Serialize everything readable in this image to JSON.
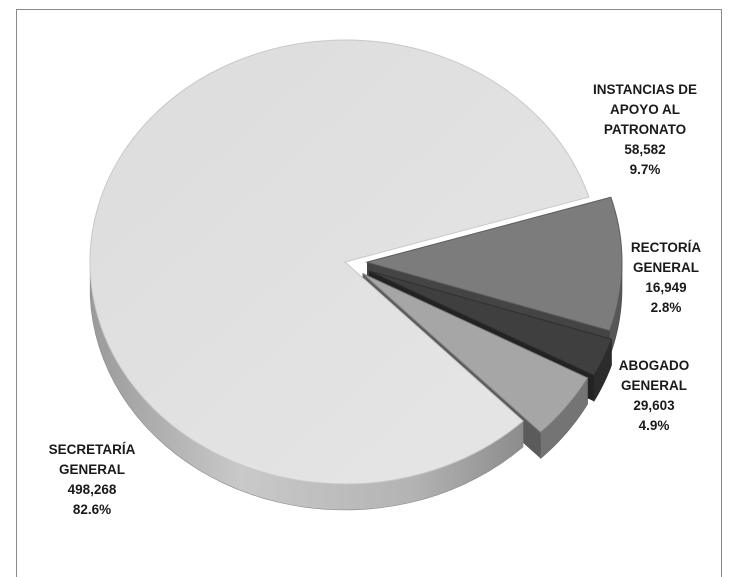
{
  "chart_data": {
    "type": "pie",
    "title": "",
    "slices": [
      {
        "label_lines": [
          "INSTANCIAS DE",
          "APOYO AL",
          "PATRONATO"
        ],
        "value": "58,582",
        "percent": "9.7%",
        "color": "#7c7c7c"
      },
      {
        "label_lines": [
          "RECTORÍA",
          "GENERAL"
        ],
        "value": "16,949",
        "percent": "2.8%",
        "color": "#3f3f3f"
      },
      {
        "label_lines": [
          "ABOGADO",
          "GENERAL"
        ],
        "value": "29,603",
        "percent": "4.9%",
        "color": "#a6a6a6"
      },
      {
        "label_lines": [
          "SECRETARÍA",
          "GENERAL"
        ],
        "value": "498,268",
        "percent": "82.6%",
        "color": "#e2e2e2"
      }
    ]
  }
}
